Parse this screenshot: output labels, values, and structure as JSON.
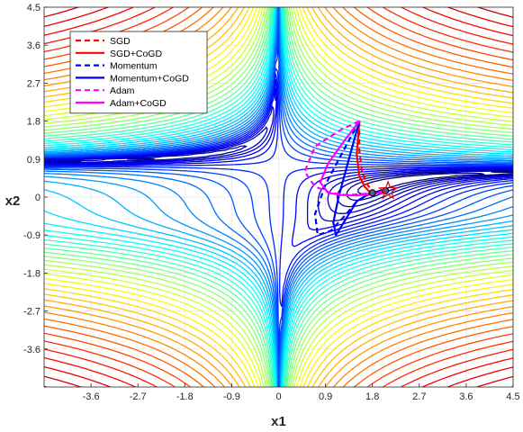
{
  "chart_data": {
    "type": "line",
    "subtype": "contour plot with optimizer trajectories",
    "xlabel": "x1",
    "ylabel": "x2",
    "xlim": [
      -4.5,
      4.5
    ],
    "ylim": [
      -4.5,
      4.5
    ],
    "xticks": [
      "-3.6",
      "-2.7",
      "-1.8",
      "-0.9",
      "0",
      "0.9",
      "1.8",
      "2.7",
      "3.6",
      "4.5"
    ],
    "yticks": [
      "4.5",
      "3.6",
      "2.7",
      "1.8",
      "0.9",
      "0",
      "-0.9",
      "-1.8",
      "-2.7",
      "-3.6"
    ],
    "grid": true,
    "legend_position": "top-left",
    "colormap": "jet",
    "optimum": {
      "marker": "star",
      "color": "#e60000",
      "x": 2.1,
      "y": 0.15
    },
    "series": [
      {
        "name": "SGD",
        "color": "#ff0000",
        "dash": "dashed",
        "x": [
          1.55,
          1.55,
          1.6,
          1.7,
          1.8,
          1.9,
          2.0,
          2.05
        ],
        "y": [
          1.8,
          1.1,
          0.6,
          0.3,
          0.15,
          0.1,
          0.12,
          0.15
        ]
      },
      {
        "name": "SGD+CoGD",
        "color": "#ff0000",
        "dash": "solid",
        "x": [
          1.55,
          1.5,
          1.55,
          1.65,
          1.75,
          1.85,
          1.95,
          2.05
        ],
        "y": [
          1.8,
          1.0,
          0.5,
          0.25,
          0.12,
          0.1,
          0.12,
          0.15
        ]
      },
      {
        "name": "Momentum",
        "color": "#0000ff",
        "dash": "dashed",
        "x": [
          1.55,
          1.2,
          0.9,
          0.7,
          0.75,
          1.0,
          1.3,
          1.5,
          1.7,
          1.9,
          2.05
        ],
        "y": [
          1.8,
          1.0,
          0.3,
          -0.4,
          -0.9,
          -0.8,
          -0.4,
          -0.1,
          0.05,
          0.12,
          0.15
        ]
      },
      {
        "name": "Momentum+CoGD",
        "color": "#0000ff",
        "dash": "solid",
        "x": [
          1.55,
          1.35,
          1.15,
          1.05,
          1.1,
          1.3,
          1.5,
          1.7,
          1.85,
          2.0,
          2.05
        ],
        "y": [
          1.8,
          0.9,
          0.0,
          -0.6,
          -0.9,
          -0.5,
          -0.1,
          0.05,
          0.1,
          0.13,
          0.15
        ]
      },
      {
        "name": "Adam",
        "color": "#ff00ff",
        "dash": "dashed",
        "x": [
          1.55,
          1.2,
          0.7,
          0.5,
          0.7,
          1.0,
          1.3,
          1.6,
          1.85,
          2.05
        ],
        "y": [
          1.8,
          1.6,
          1.2,
          0.6,
          0.25,
          0.1,
          0.05,
          0.07,
          0.1,
          0.15
        ]
      },
      {
        "name": "Adam+CoGD",
        "color": "#ff00ff",
        "dash": "solid",
        "x": [
          1.55,
          1.3,
          0.95,
          0.8,
          0.95,
          1.2,
          1.5,
          1.75,
          1.95,
          2.05
        ],
        "y": [
          1.8,
          1.4,
          0.8,
          0.35,
          0.1,
          0.05,
          0.04,
          0.07,
          0.1,
          0.15
        ]
      }
    ]
  }
}
